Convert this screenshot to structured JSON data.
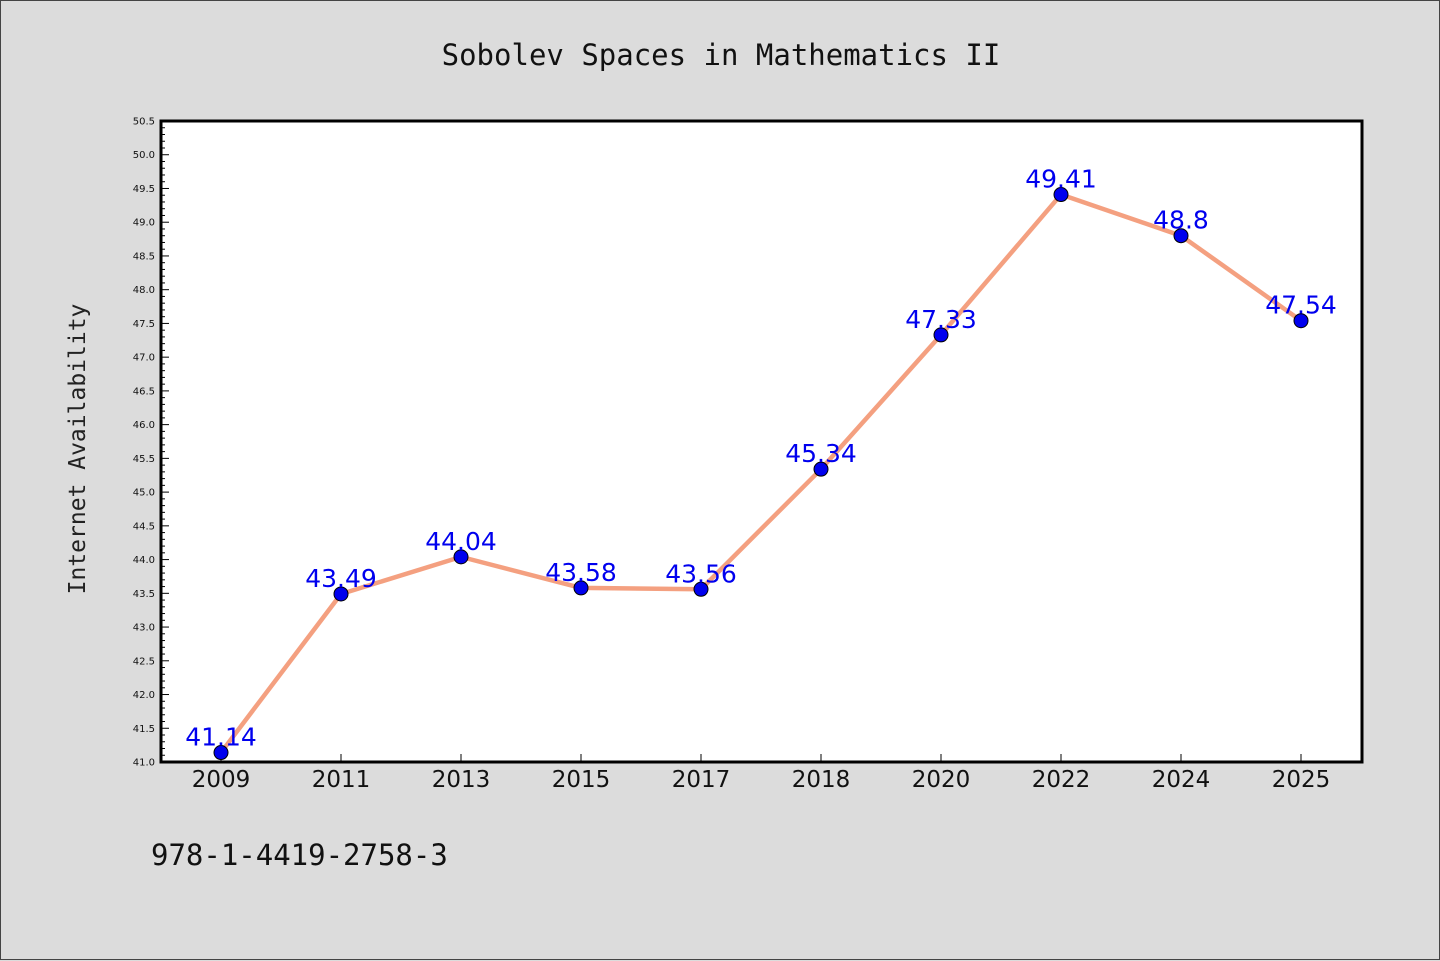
{
  "chart_data": {
    "type": "line",
    "title": "Sobolev Spaces in Mathematics II",
    "xlabel": "",
    "ylabel": "Internet Availability",
    "categories": [
      "2009",
      "2011",
      "2013",
      "2015",
      "2017",
      "2018",
      "2020",
      "2022",
      "2024",
      "2025"
    ],
    "series": [
      {
        "values": [
          41.14,
          43.49,
          44.04,
          43.58,
          43.56,
          45.34,
          47.33,
          49.41,
          48.8,
          47.54
        ],
        "data_labels": [
          "41.14",
          "43.49",
          "44.04",
          "43.58",
          "43.56",
          "45.34",
          "47.33",
          "49.41",
          "48.8",
          "47.54"
        ],
        "line_color": "#f4a080",
        "marker_color": "#0000ee"
      }
    ],
    "ylim": [
      41.0,
      50.5
    ],
    "yticks": [
      "41.0",
      "41.5",
      "42.0",
      "42.5",
      "43.0",
      "43.5",
      "44.0",
      "44.5",
      "45.0",
      "45.5",
      "46.0",
      "46.5",
      "47.0",
      "47.5",
      "48.0",
      "48.5",
      "49.0",
      "49.5",
      "50.0",
      "50.5"
    ],
    "grid": false,
    "legend": "none",
    "footer_text": "978-1-4419-2758-3",
    "colors": {
      "background": "#dcdcdc",
      "plot_background": "#ffffff",
      "data_label": "#0000ee"
    }
  }
}
